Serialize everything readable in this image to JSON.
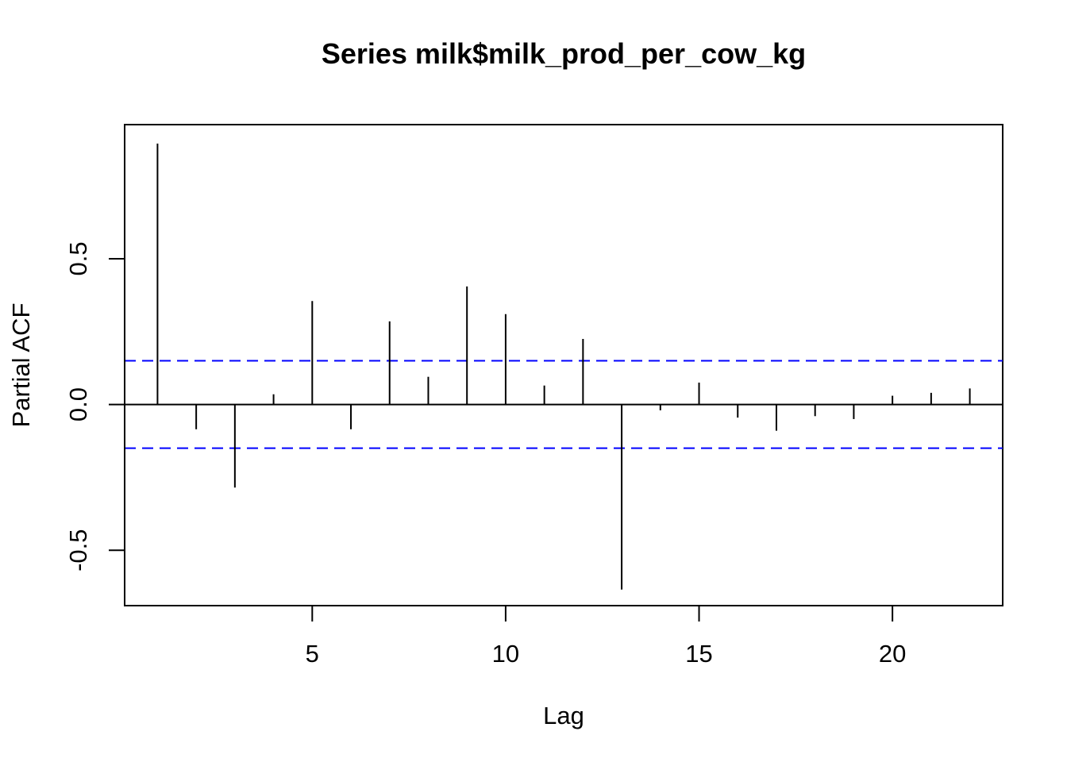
{
  "chart_data": {
    "type": "bar",
    "title": "Series  milk$milk_prod_per_cow_kg",
    "xlabel": "Lag",
    "ylabel": "Partial ACF",
    "xlim": [
      0.15,
      22.85
    ],
    "ylim": [
      -0.69,
      0.96
    ],
    "x_ticks": [
      5,
      10,
      15,
      20
    ],
    "x_tick_labels": [
      "5",
      "10",
      "15",
      "20"
    ],
    "y_ticks": [
      -0.5,
      0.0,
      0.5
    ],
    "y_tick_labels": [
      "-0.5",
      "0.0",
      "0.5"
    ],
    "grid": false,
    "legend": "none",
    "confidence_bound": 0.15,
    "colors": {
      "bars": "#000000",
      "confidence_lines": "#0000ff",
      "zero_line": "#000000"
    },
    "series": [
      {
        "x": [
          1,
          2,
          3,
          4,
          5,
          6,
          7,
          8,
          9,
          10,
          11,
          12,
          13,
          14,
          15,
          16,
          17,
          18,
          19,
          20,
          21,
          22
        ],
        "values": [
          0.895,
          -0.085,
          -0.285,
          0.035,
          0.355,
          -0.085,
          0.285,
          0.095,
          0.405,
          0.31,
          0.065,
          0.225,
          -0.635,
          -0.02,
          0.075,
          -0.045,
          -0.09,
          -0.04,
          -0.05,
          0.03,
          0.04,
          0.055
        ]
      }
    ]
  }
}
